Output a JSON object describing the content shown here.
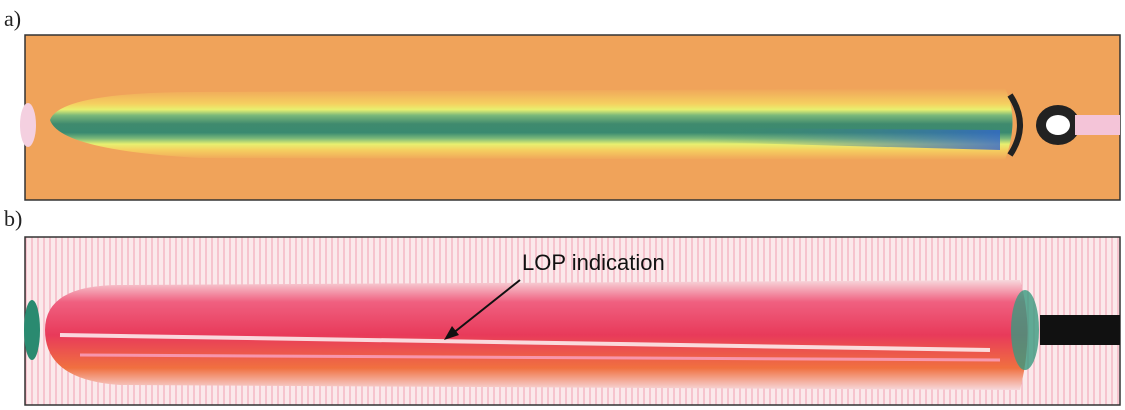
{
  "panels": [
    {
      "label": "a)"
    },
    {
      "label": "b)",
      "annotation": "LOP indication"
    }
  ]
}
